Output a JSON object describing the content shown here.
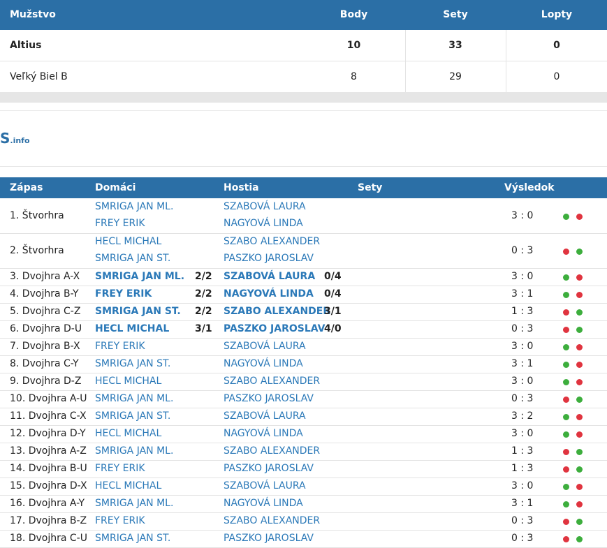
{
  "standings": {
    "headers": {
      "team": "Mužstvo",
      "body": "Body",
      "sety": "Sety",
      "lopty": "Lopty"
    },
    "rows": [
      {
        "team": "Altius",
        "body": "10",
        "sety": "33",
        "lopty": "0",
        "bold": true
      },
      {
        "team": "Veľký Biel B",
        "body": "8",
        "sety": "29",
        "lopty": "0",
        "bold": false
      }
    ]
  },
  "logo": {
    "main": "S",
    "suffix": ".info"
  },
  "matches": {
    "headers": {
      "zapas": "Zápas",
      "domaci": "Domáci",
      "hostia": "Hostia",
      "sety": "Sety",
      "vysledok": "Výsledok"
    },
    "doubles": [
      {
        "label": "1. Štvorhra",
        "home1": "SMRIGA JAN ML.",
        "home2": "FREY ERIK",
        "away1": "SZABOVÁ LAURA",
        "away2": "NAGYOVÁ LINDA",
        "result": "3 : 0",
        "dots": [
          "green",
          "red"
        ]
      },
      {
        "label": "2. Štvorhra",
        "home1": "HECL MICHAL",
        "home2": "SMRIGA JAN ST.",
        "away1": "SZABO ALEXANDER",
        "away2": "PASZKO JAROSLAV",
        "result": "0 : 3",
        "dots": [
          "red",
          "green"
        ]
      }
    ],
    "singles": [
      {
        "label": "3. Dvojhra A-X",
        "home": "SMRIGA JAN ML.",
        "home_score": "2/2",
        "away": "SZABOVÁ LAURA",
        "away_score": "0/4",
        "result": "3 : 0",
        "dots": [
          "green",
          "red"
        ],
        "bold": true
      },
      {
        "label": "4. Dvojhra B-Y",
        "home": "FREY ERIK",
        "home_score": "2/2",
        "away": "NAGYOVÁ LINDA",
        "away_score": "0/4",
        "result": "3 : 1",
        "dots": [
          "green",
          "red"
        ],
        "bold": true
      },
      {
        "label": "5. Dvojhra C-Z",
        "home": "SMRIGA JAN ST.",
        "home_score": "2/2",
        "away": "SZABO ALEXANDER",
        "away_score": "3/1",
        "result": "1 : 3",
        "dots": [
          "red",
          "green"
        ],
        "bold": true
      },
      {
        "label": "6. Dvojhra D-U",
        "home": "HECL MICHAL",
        "home_score": "3/1",
        "away": "PASZKO JAROSLAV",
        "away_score": "4/0",
        "result": "0 : 3",
        "dots": [
          "red",
          "green"
        ],
        "bold": true
      },
      {
        "label": "7. Dvojhra B-X",
        "home": "FREY ERIK",
        "home_score": "",
        "away": "SZABOVÁ LAURA",
        "away_score": "",
        "result": "3 : 0",
        "dots": [
          "green",
          "red"
        ],
        "bold": false
      },
      {
        "label": "8. Dvojhra C-Y",
        "home": "SMRIGA JAN ST.",
        "home_score": "",
        "away": "NAGYOVÁ LINDA",
        "away_score": "",
        "result": "3 : 1",
        "dots": [
          "green",
          "red"
        ],
        "bold": false
      },
      {
        "label": "9. Dvojhra D-Z",
        "home": "HECL MICHAL",
        "home_score": "",
        "away": "SZABO ALEXANDER",
        "away_score": "",
        "result": "3 : 0",
        "dots": [
          "green",
          "red"
        ],
        "bold": false
      },
      {
        "label": "10. Dvojhra A-U",
        "home": "SMRIGA JAN ML.",
        "home_score": "",
        "away": "PASZKO JAROSLAV",
        "away_score": "",
        "result": "0 : 3",
        "dots": [
          "red",
          "green"
        ],
        "bold": false
      },
      {
        "label": "11. Dvojhra C-X",
        "home": "SMRIGA JAN ST.",
        "home_score": "",
        "away": "SZABOVÁ LAURA",
        "away_score": "",
        "result": "3 : 2",
        "dots": [
          "green",
          "red"
        ],
        "bold": false
      },
      {
        "label": "12. Dvojhra D-Y",
        "home": "HECL MICHAL",
        "home_score": "",
        "away": "NAGYOVÁ LINDA",
        "away_score": "",
        "result": "3 : 0",
        "dots": [
          "green",
          "red"
        ],
        "bold": false
      },
      {
        "label": "13. Dvojhra A-Z",
        "home": "SMRIGA JAN ML.",
        "home_score": "",
        "away": "SZABO ALEXANDER",
        "away_score": "",
        "result": "1 : 3",
        "dots": [
          "red",
          "green"
        ],
        "bold": false
      },
      {
        "label": "14. Dvojhra B-U",
        "home": "FREY ERIK",
        "home_score": "",
        "away": "PASZKO JAROSLAV",
        "away_score": "",
        "result": "1 : 3",
        "dots": [
          "red",
          "green"
        ],
        "bold": false
      },
      {
        "label": "15. Dvojhra D-X",
        "home": "HECL MICHAL",
        "home_score": "",
        "away": "SZABOVÁ LAURA",
        "away_score": "",
        "result": "3 : 0",
        "dots": [
          "green",
          "red"
        ],
        "bold": false
      },
      {
        "label": "16. Dvojhra A-Y",
        "home": "SMRIGA JAN ML.",
        "home_score": "",
        "away": "NAGYOVÁ LINDA",
        "away_score": "",
        "result": "3 : 1",
        "dots": [
          "green",
          "red"
        ],
        "bold": false
      },
      {
        "label": "17. Dvojhra B-Z",
        "home": "FREY ERIK",
        "home_score": "",
        "away": "SZABO ALEXANDER",
        "away_score": "",
        "result": "0 : 3",
        "dots": [
          "red",
          "green"
        ],
        "bold": false
      },
      {
        "label": "18. Dvojhra C-U",
        "home": "SMRIGA JAN ST.",
        "home_score": "",
        "away": "PASZKO JAROSLAV",
        "away_score": "",
        "result": "0 : 3",
        "dots": [
          "red",
          "green"
        ],
        "bold": false
      }
    ]
  },
  "colors": {
    "header": "#2b6fa6",
    "link": "#2b79b8",
    "win": "#3dae3d",
    "loss": "#e0343f"
  }
}
